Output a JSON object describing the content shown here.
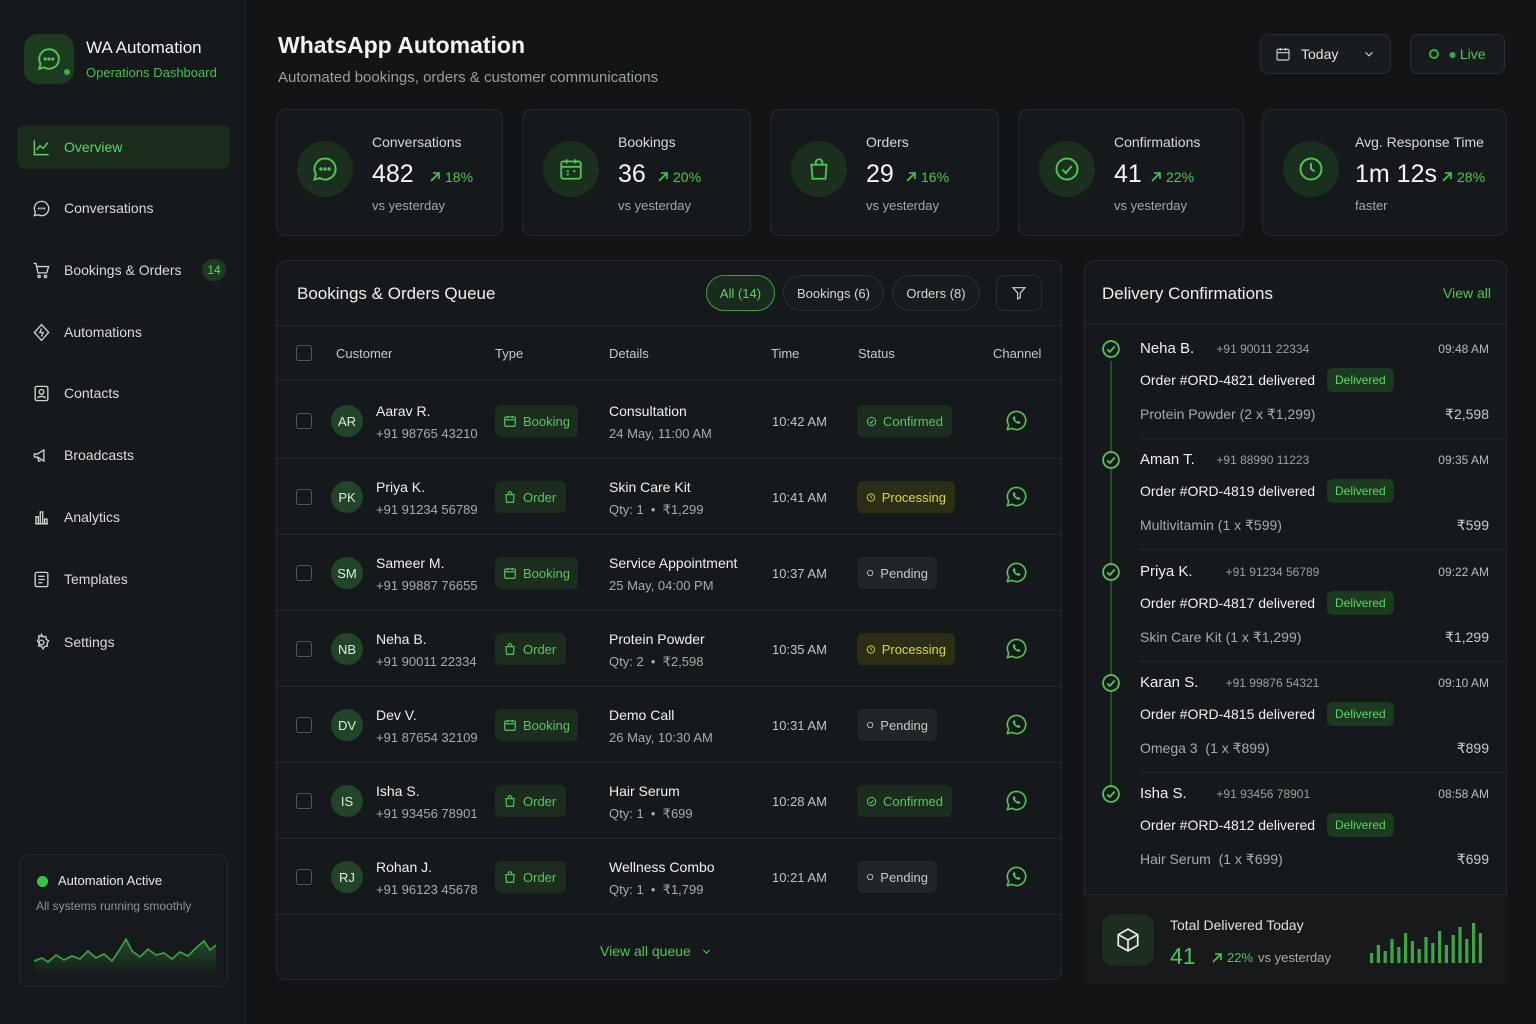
{
  "brand": {
    "title": "WA Automation",
    "subtitle": "Operations Dashboard"
  },
  "nav": [
    {
      "label": "Overview",
      "icon": "chart-line-icon",
      "active": true
    },
    {
      "label": "Conversations",
      "icon": "chat-icon"
    },
    {
      "label": "Bookings & Orders",
      "icon": "cart-icon",
      "badge": "14"
    },
    {
      "label": "Automations",
      "icon": "automation-icon"
    },
    {
      "label": "Contacts",
      "icon": "contacts-icon"
    },
    {
      "label": "Broadcasts",
      "icon": "megaphone-icon"
    },
    {
      "label": "Analytics",
      "icon": "bar-chart-icon"
    },
    {
      "label": "Templates",
      "icon": "template-icon"
    },
    {
      "label": "Settings",
      "icon": "gear-icon"
    }
  ],
  "system_status": {
    "title": "Automation Active",
    "subtitle": "All systems running smoothly"
  },
  "header": {
    "title": "WhatsApp Automation",
    "subtitle": "Automated bookings, orders & customer communications",
    "date_filter": "Today",
    "live_label": "Live"
  },
  "stats": [
    {
      "label": "Conversations",
      "value": "482",
      "delta": "18%",
      "foot": "vs yesterday",
      "icon": "chat-icon"
    },
    {
      "label": "Bookings",
      "value": "36",
      "delta": "20%",
      "foot": "vs yesterday",
      "icon": "calendar-icon"
    },
    {
      "label": "Orders",
      "value": "29",
      "delta": "16%",
      "foot": "vs yesterday",
      "icon": "shopping-bag-icon"
    },
    {
      "label": "Confirmations",
      "value": "41",
      "delta": "22%",
      "foot": "vs yesterday",
      "icon": "check-circle-icon"
    },
    {
      "label": "Avg. Response Time",
      "value": "1m 12s",
      "delta": "28%",
      "foot": "faster",
      "icon": "clock-icon"
    }
  ],
  "queue": {
    "title": "Bookings & Orders Queue",
    "filters": [
      {
        "label": "All (14)",
        "active": true
      },
      {
        "label": "Bookings (6)"
      },
      {
        "label": "Orders (8)"
      }
    ],
    "columns": [
      "Customer",
      "Type",
      "Details",
      "Time",
      "Status",
      "Channel"
    ],
    "rows": [
      {
        "initials": "AR",
        "name": "Aarav R.",
        "phone": "+91 98765 43210",
        "type": "Booking",
        "detail": "Consultation",
        "detail2": "24 May, 11:00 AM",
        "time": "10:42 AM",
        "status": "Confirmed"
      },
      {
        "initials": "PK",
        "name": "Priya K.",
        "phone": "+91 91234 56789",
        "type": "Order",
        "detail": "Skin Care Kit",
        "detail2": "Qty: 1  •  ₹1,299",
        "time": "10:41 AM",
        "status": "Processing"
      },
      {
        "initials": "SM",
        "name": "Sameer M.",
        "phone": "+91 99887 76655",
        "type": "Booking",
        "detail": "Service Appointment",
        "detail2": "25 May, 04:00 PM",
        "time": "10:37 AM",
        "status": "Pending"
      },
      {
        "initials": "NB",
        "name": "Neha B.",
        "phone": "+91 90011 22334",
        "type": "Order",
        "detail": "Protein Powder",
        "detail2": "Qty: 2  •  ₹2,598",
        "time": "10:35 AM",
        "status": "Processing"
      },
      {
        "initials": "DV",
        "name": "Dev V.",
        "phone": "+91 87654 32109",
        "type": "Booking",
        "detail": "Demo Call",
        "detail2": "26 May, 10:30 AM",
        "time": "10:31 AM",
        "status": "Pending"
      },
      {
        "initials": "IS",
        "name": "Isha S.",
        "phone": "+91 93456 78901",
        "type": "Order",
        "detail": "Hair Serum",
        "detail2": "Qty: 1  •  ₹699",
        "time": "10:28 AM",
        "status": "Confirmed"
      },
      {
        "initials": "RJ",
        "name": "Rohan J.",
        "phone": "+91 96123 45678",
        "type": "Order",
        "detail": "Wellness Combo",
        "detail2": "Qty: 1  •  ₹1,799",
        "time": "10:21 AM",
        "status": "Pending"
      }
    ],
    "view_all": "View all queue"
  },
  "deliveries": {
    "title": "Delivery Confirmations",
    "view_all": "View all",
    "items": [
      {
        "name": "Neha B.",
        "phone": "+91 90011 22334",
        "time": "09:48 AM",
        "order": "Order #ORD-4821 delivered",
        "badge": "Delivered",
        "item": "Protein Powder (2 x ₹1,299)",
        "amount": "₹2,598"
      },
      {
        "name": "Aman T.",
        "phone": "+91 88990 11223",
        "time": "09:35 AM",
        "order": "Order #ORD-4819 delivered",
        "badge": "Delivered",
        "item": "Multivitamin (1 x ₹599)",
        "amount": "₹599"
      },
      {
        "name": "Priya K.",
        "phone": "+91 91234 56789",
        "time": "09:22 AM",
        "order": "Order #ORD-4817 delivered",
        "badge": "Delivered",
        "item": "Skin Care Kit (1 x ₹1,299)",
        "amount": "₹1,299"
      },
      {
        "name": "Karan S.",
        "phone": "+91 99876 54321",
        "time": "09:10 AM",
        "order": "Order #ORD-4815 delivered",
        "badge": "Delivered",
        "item": "Omega 3  (1 x ₹899)",
        "amount": "₹899"
      },
      {
        "name": "Isha S.",
        "phone": "+91 93456 78901",
        "time": "08:58 AM",
        "order": "Order #ORD-4812 delivered",
        "badge": "Delivered",
        "item": "Hair Serum  (1 x ₹699)",
        "amount": "₹699"
      }
    ],
    "total": {
      "label": "Total Delivered Today",
      "value": "41",
      "delta": "22%",
      "vs": "vs yesterday"
    }
  },
  "colors": {
    "accent": "#4fc553",
    "processing": "#d9d83a",
    "background": "#121416",
    "panel": "#16191b"
  }
}
